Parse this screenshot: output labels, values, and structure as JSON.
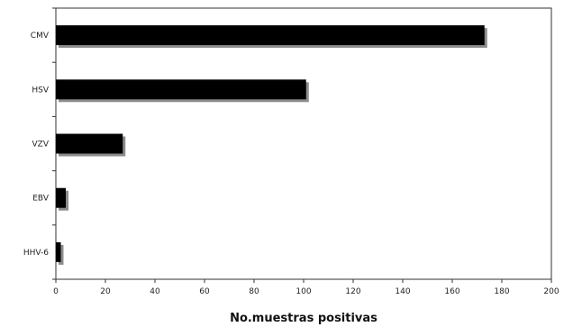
{
  "chart_data": {
    "type": "bar",
    "orientation": "horizontal",
    "categories": [
      "CMV",
      "HSV",
      "VZV",
      "EBV",
      "HHV-6"
    ],
    "values": [
      173,
      101,
      27,
      4,
      2
    ],
    "xlabel": "No.muestras positivas",
    "ylabel": "",
    "xlim": [
      0,
      200
    ],
    "xticks": [
      0,
      20,
      40,
      60,
      80,
      100,
      120,
      140,
      160,
      180,
      200
    ],
    "grid": false,
    "bar_color": "#000000",
    "shadow_color": "#8c8c8c"
  }
}
